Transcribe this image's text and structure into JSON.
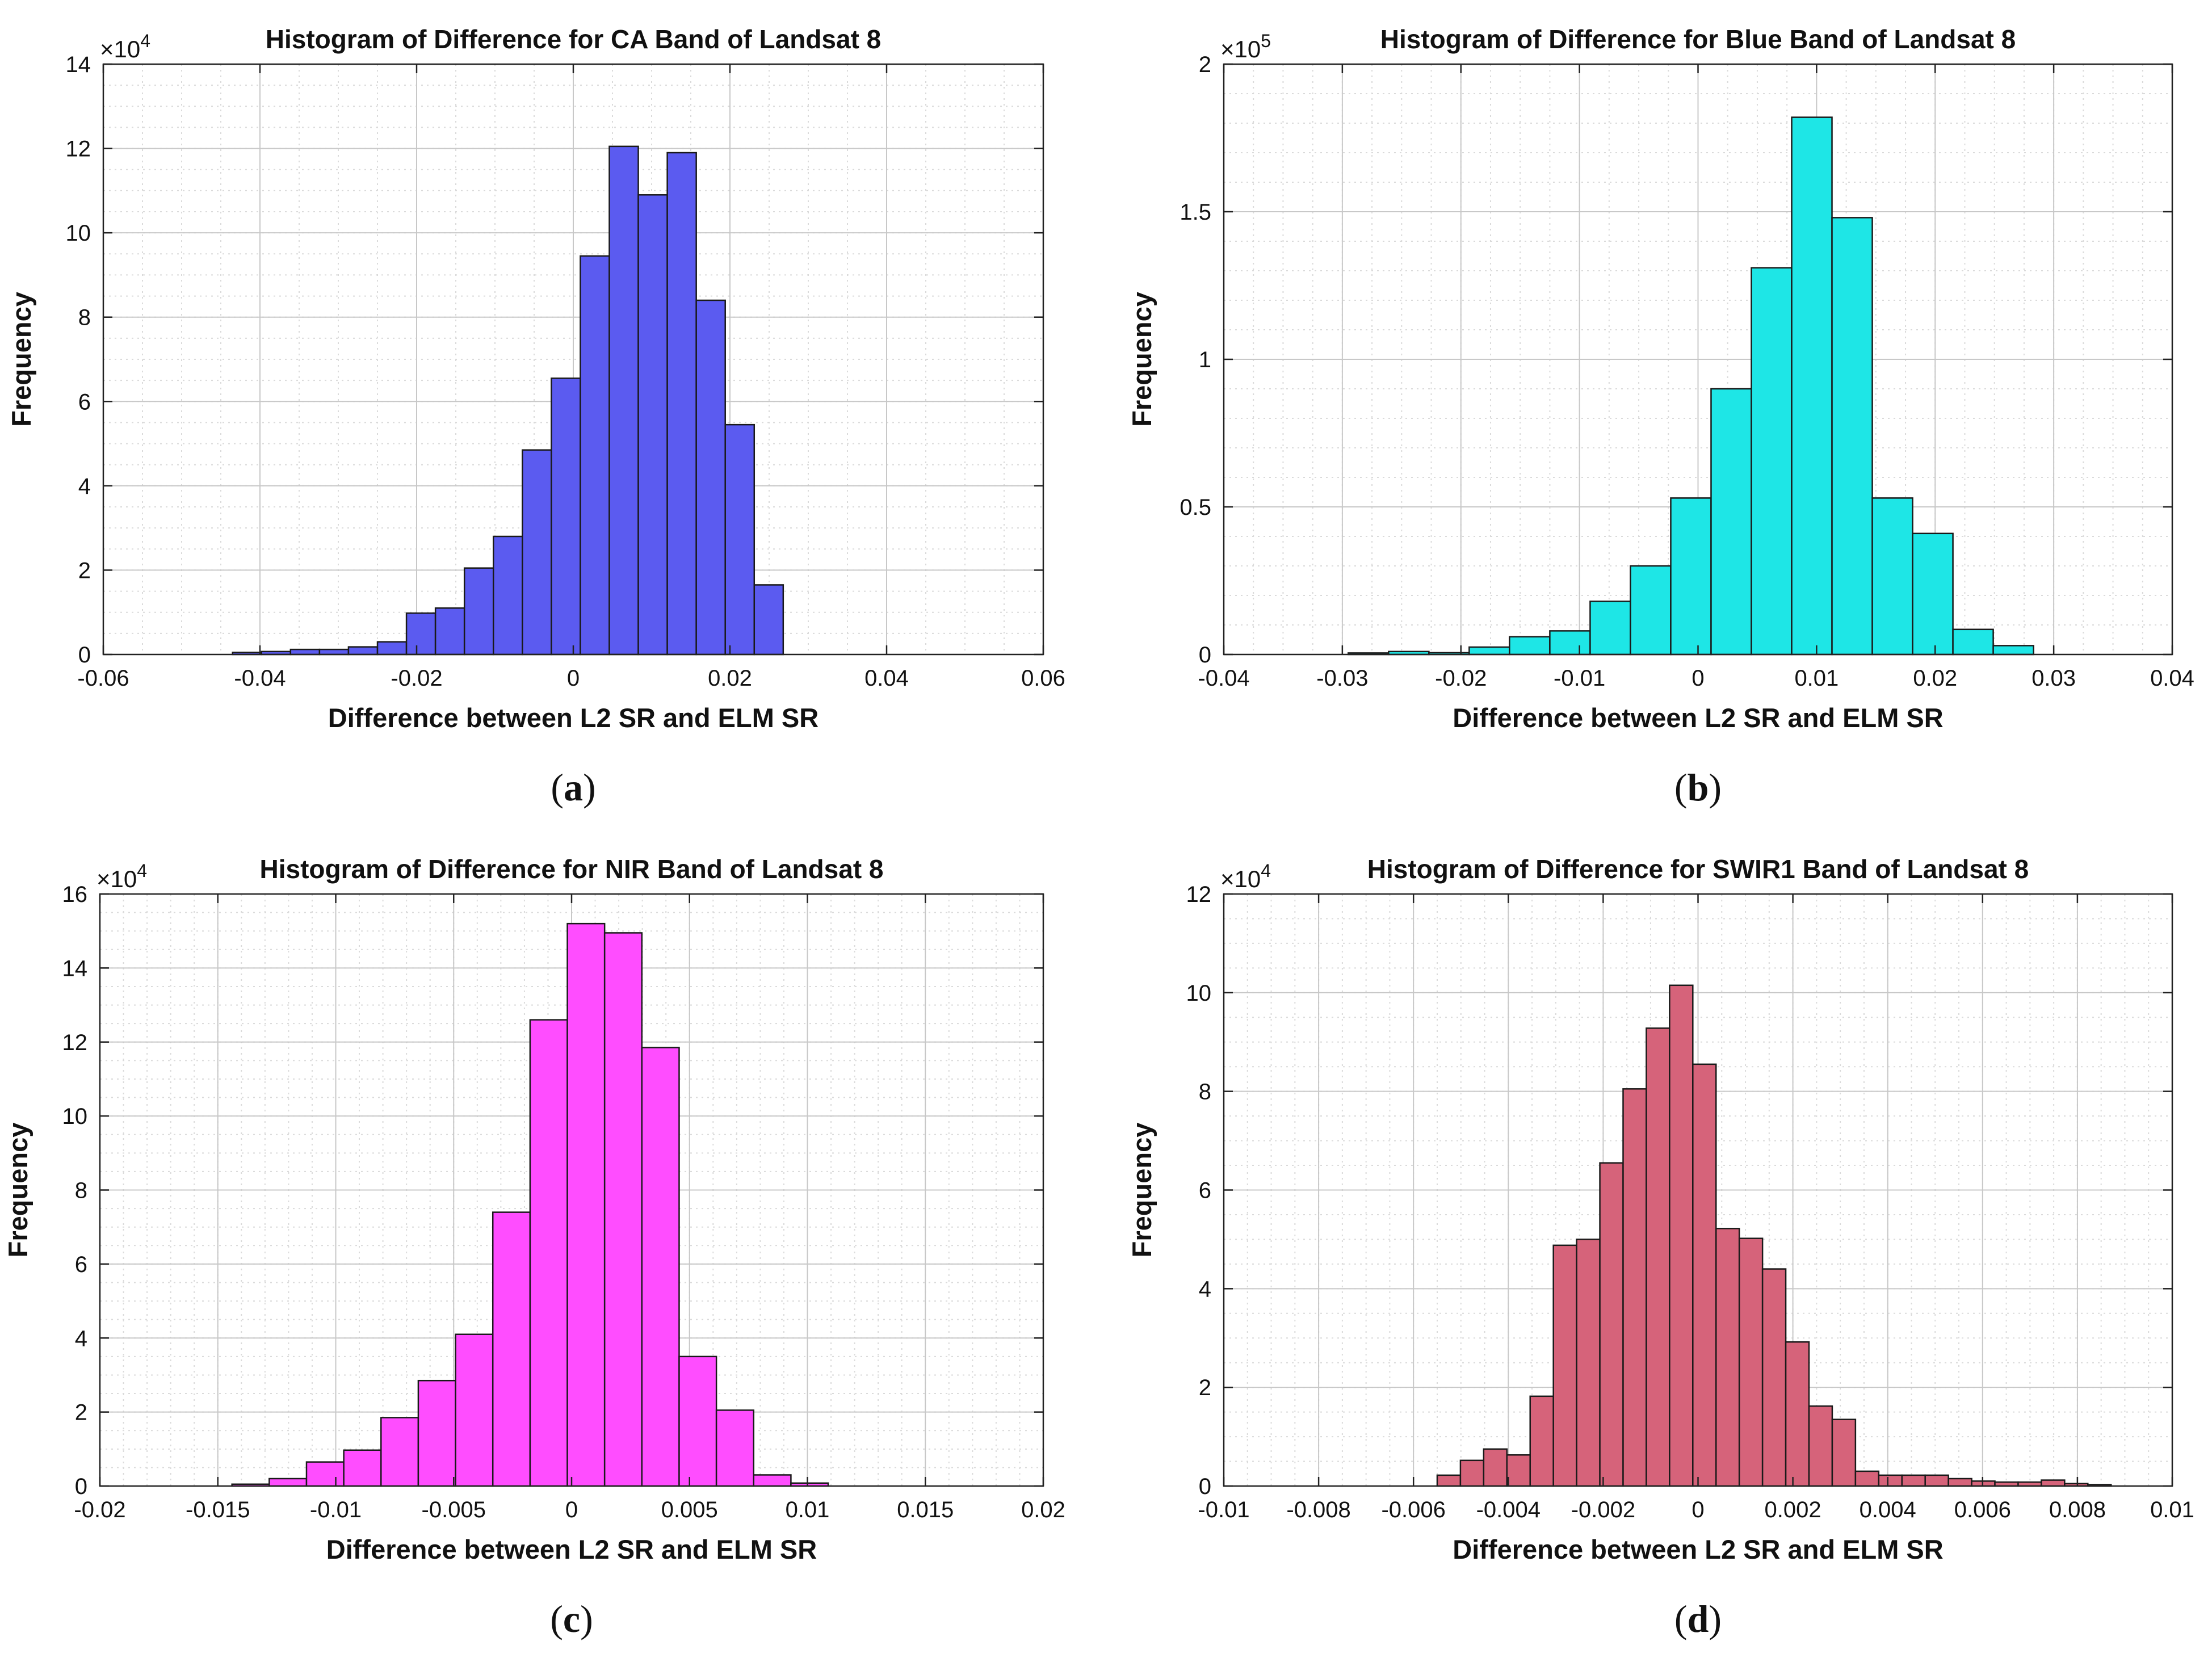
{
  "chart_data": [
    {
      "type": "histogram",
      "panel_label": "a",
      "title": "Histogram of Difference for CA Band of Landsat 8",
      "xlabel": "Difference between L2 SR and ELM SR",
      "ylabel": "Frequency",
      "y_multiplier": "×10",
      "y_exponent": "4",
      "xlim": [
        -0.06,
        0.06
      ],
      "ylim": [
        0,
        14
      ],
      "x_ticks": [
        -0.06,
        -0.04,
        -0.02,
        0,
        0.02,
        0.04,
        0.06
      ],
      "x_tick_labels": [
        "-0.06",
        "-0.04",
        "-0.02",
        "0",
        "0.02",
        "0.04",
        "0.06"
      ],
      "y_ticks": [
        0,
        2,
        4,
        6,
        8,
        10,
        12,
        14
      ],
      "y_tick_labels": [
        "0",
        "2",
        "4",
        "6",
        "8",
        "10",
        "12",
        "14"
      ],
      "x_minor_step": 0.005,
      "y_minor_step": 0.5,
      "bin_start": -0.0435,
      "bin_width": 0.0037,
      "values": [
        0.05,
        0.07,
        0.12,
        0.12,
        0.18,
        0.3,
        0.98,
        1.1,
        2.05,
        2.8,
        4.85,
        6.55,
        9.45,
        12.05,
        10.9,
        11.9,
        8.4,
        5.45,
        1.65
      ],
      "bar_color": "#5b5bf0"
    },
    {
      "type": "histogram",
      "panel_label": "b",
      "title": "Histogram of Difference for Blue Band of Landsat 8",
      "xlabel": "Difference between L2 SR and ELM SR",
      "ylabel": "Frequency",
      "y_multiplier": "×10",
      "y_exponent": "5",
      "xlim": [
        -0.04,
        0.04
      ],
      "ylim": [
        0,
        2
      ],
      "x_ticks": [
        -0.04,
        -0.03,
        -0.02,
        -0.01,
        0,
        0.01,
        0.02,
        0.03,
        0.04
      ],
      "x_tick_labels": [
        "-0.04",
        "-0.03",
        "-0.02",
        "-0.01",
        "0",
        "0.01",
        "0.02",
        "0.03",
        "0.04"
      ],
      "y_ticks": [
        0,
        0.5,
        1,
        1.5,
        2
      ],
      "y_tick_labels": [
        "0",
        "0.5",
        "1",
        "1.5",
        "2"
      ],
      "x_minor_step": 0.0025,
      "y_minor_step": 0.1,
      "bin_start": -0.0295,
      "bin_width": 0.0034,
      "values": [
        0.005,
        0.01,
        0.006,
        0.025,
        0.06,
        0.08,
        0.18,
        0.3,
        0.53,
        0.9,
        1.31,
        1.82,
        1.48,
        0.53,
        0.41,
        0.085,
        0.03
      ],
      "bar_color": "#1ee6e6"
    },
    {
      "type": "histogram",
      "panel_label": "c",
      "title": "Histogram of Difference for NIR Band of Landsat 8",
      "xlabel": "Difference between L2 SR and ELM SR",
      "ylabel": "Frequency",
      "y_multiplier": "×10",
      "y_exponent": "4",
      "xlim": [
        -0.02,
        0.02
      ],
      "ylim": [
        0,
        16
      ],
      "x_ticks": [
        -0.02,
        -0.015,
        -0.01,
        -0.005,
        0,
        0.005,
        0.01,
        0.015,
        0.02
      ],
      "x_tick_labels": [
        "-0.02",
        "-0.015",
        "-0.01",
        "-0.005",
        "0",
        "0.005",
        "0.01",
        "0.015",
        "0.02"
      ],
      "y_ticks": [
        0,
        2,
        4,
        6,
        8,
        10,
        12,
        14,
        16
      ],
      "y_tick_labels": [
        "0",
        "2",
        "4",
        "6",
        "8",
        "10",
        "12",
        "14",
        "16"
      ],
      "x_minor_step": 0.001,
      "y_minor_step": 0.5,
      "bin_start": -0.0144,
      "bin_width": 0.00158,
      "values": [
        0.05,
        0.2,
        0.65,
        0.97,
        1.85,
        2.85,
        4.1,
        7.4,
        12.6,
        15.2,
        14.95,
        11.85,
        3.5,
        2.05,
        0.3,
        0.08
      ],
      "bar_color": "#ff4dff"
    },
    {
      "type": "histogram",
      "panel_label": "d",
      "title": "Histogram of Difference for SWIR1 Band of Landsat 8",
      "xlabel": "Difference between L2 SR and ELM SR",
      "ylabel": "Frequency",
      "y_multiplier": "×10",
      "y_exponent": "4",
      "xlim": [
        -0.01,
        0.01
      ],
      "ylim": [
        0,
        12
      ],
      "x_ticks": [
        -0.01,
        -0.008,
        -0.006,
        -0.004,
        -0.002,
        0,
        0.002,
        0.004,
        0.006,
        0.008,
        0.01
      ],
      "x_tick_labels": [
        "-0.01",
        "-0.008",
        "-0.006",
        "-0.004",
        "-0.002",
        "0",
        "0.002",
        "0.004",
        "0.006",
        "0.008",
        "0.01"
      ],
      "y_ticks": [
        0,
        2,
        4,
        6,
        8,
        10,
        12
      ],
      "y_tick_labels": [
        "0",
        "2",
        "4",
        "6",
        "8",
        "10",
        "12"
      ],
      "x_minor_step": 0.0005,
      "y_minor_step": 0.5,
      "bin_start": -0.0055,
      "bin_width": 0.00049,
      "values": [
        0.22,
        0.52,
        0.75,
        0.63,
        1.82,
        4.88,
        5.0,
        6.55,
        8.05,
        9.28,
        10.15,
        8.55,
        5.22,
        5.02,
        4.4,
        2.92,
        1.62,
        1.35,
        0.3,
        0.22,
        0.22,
        0.22,
        0.15,
        0.1,
        0.08,
        0.08,
        0.12,
        0.05,
        0.03
      ],
      "bar_color": "#d6637a"
    }
  ]
}
